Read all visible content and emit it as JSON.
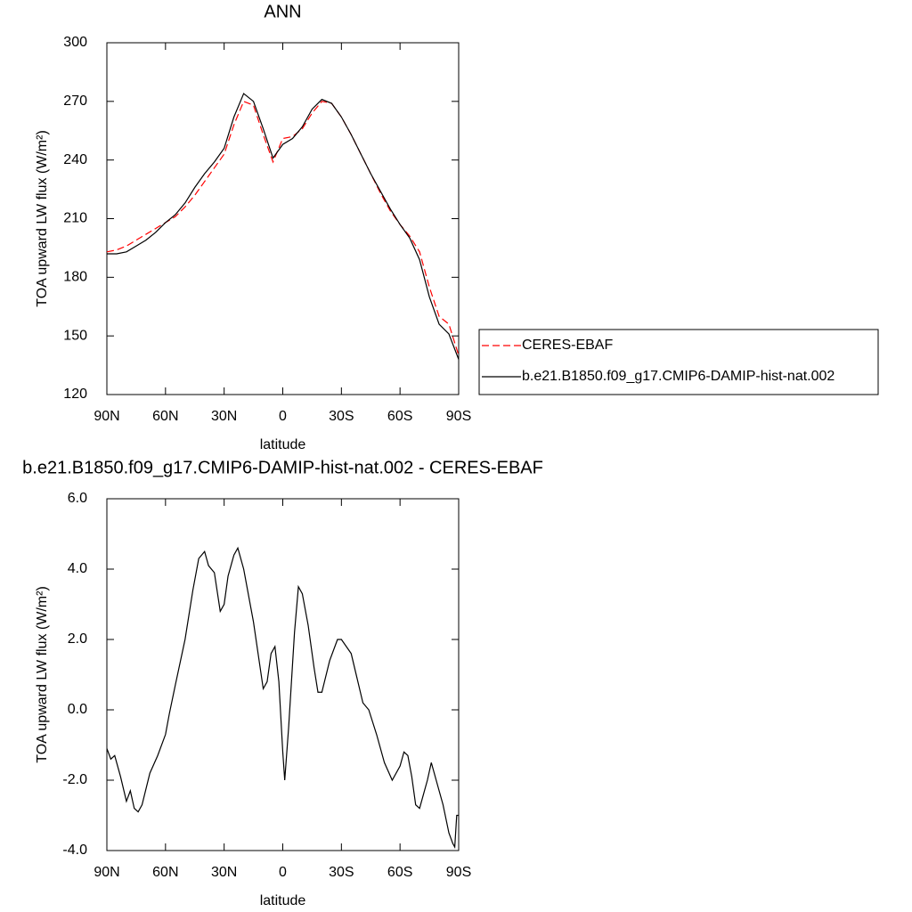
{
  "chart_data": [
    {
      "type": "line",
      "title": "ANN",
      "x_label": "latitude",
      "y_label": "TOA upward LW flux (W/m²)",
      "x": [
        90,
        85,
        80,
        75,
        70,
        65,
        60,
        55,
        50,
        45,
        40,
        35,
        30,
        25,
        20,
        15,
        10,
        5,
        0,
        -5,
        -10,
        -15,
        -20,
        -25,
        -30,
        -35,
        -40,
        -45,
        -50,
        -55,
        -60,
        -65,
        -70,
        -75,
        -80,
        -85,
        -90
      ],
      "series": [
        {
          "name": "CERES-EBAF",
          "color": "#ff0000",
          "dash": true,
          "values": [
            193,
            194,
            196,
            199,
            202,
            205,
            208,
            211,
            216,
            222,
            229,
            236,
            243,
            258,
            270,
            268,
            253,
            239,
            251,
            252,
            256,
            264,
            270,
            269,
            262,
            253,
            243,
            233,
            223,
            214,
            207,
            201,
            193,
            175,
            160,
            156,
            140
          ]
        },
        {
          "name": "b.e21.B1850.f09_g17.CMIP6-DAMIP-hist-nat.002",
          "color": "#000000",
          "dash": false,
          "values": [
            192,
            192,
            193,
            196,
            199,
            203,
            208,
            212,
            218,
            226,
            233,
            239,
            246,
            262,
            274,
            270,
            256,
            241,
            248,
            251,
            257,
            266,
            271,
            269,
            262,
            253,
            243,
            233,
            224,
            215,
            207,
            200,
            189,
            170,
            156,
            151,
            138
          ]
        }
      ],
      "xlim": [
        90,
        -90
      ],
      "xticks": [
        {
          "value": 90,
          "label": "90N"
        },
        {
          "value": 60,
          "label": "60N"
        },
        {
          "value": 30,
          "label": "30N"
        },
        0,
        {
          "value": -30,
          "label": "30S"
        },
        {
          "value": -60,
          "label": "60S"
        },
        {
          "value": -90,
          "label": "90S"
        }
      ],
      "ylim": [
        120,
        300
      ],
      "yticks": [
        120,
        150,
        180,
        210,
        240,
        270,
        300
      ],
      "legend": "right"
    },
    {
      "type": "line",
      "title": "b.e21.B1850.f09_g17.CMIP6-DAMIP-hist-nat.002 - CERES-EBAF",
      "x_label": "latitude",
      "y_label": "TOA upward LW flux (W/m²)",
      "x": [
        90,
        88,
        86,
        83,
        80,
        78,
        76,
        74,
        72,
        68,
        64,
        60,
        58,
        55,
        50,
        46,
        43,
        40,
        38,
        35,
        32,
        30,
        28,
        25,
        23,
        20,
        15,
        10,
        8,
        6,
        4,
        2,
        0,
        -1,
        -3,
        -6,
        -8,
        -10,
        -13,
        -16,
        -18,
        -20,
        -24,
        -28,
        -30,
        -35,
        -38,
        -41,
        -44,
        -48,
        -52,
        -56,
        -60,
        -62,
        -64,
        -66,
        -68,
        -70,
        -72,
        -74,
        -76,
        -80,
        -82,
        -85,
        -87,
        -88,
        -89,
        -90
      ],
      "series": [
        {
          "name": null,
          "color": "#000000",
          "dash": false,
          "values": [
            -1.1,
            -1.4,
            -1.3,
            -1.9,
            -2.6,
            -2.3,
            -2.8,
            -2.9,
            -2.7,
            -1.8,
            -1.3,
            -0.7,
            -0.1,
            0.7,
            2.0,
            3.4,
            4.3,
            4.5,
            4.1,
            3.9,
            2.8,
            3.0,
            3.8,
            4.4,
            4.6,
            4.0,
            2.5,
            0.6,
            0.8,
            1.6,
            1.8,
            0.8,
            -1.2,
            -2.0,
            -0.5,
            2.2,
            3.5,
            3.3,
            2.4,
            1.2,
            0.5,
            0.5,
            1.4,
            2.0,
            2.0,
            1.6,
            0.9,
            0.2,
            0.0,
            -0.7,
            -1.5,
            -2.0,
            -1.6,
            -1.2,
            -1.3,
            -1.9,
            -2.7,
            -2.8,
            -2.4,
            -2.0,
            -1.5,
            -2.3,
            -2.7,
            -3.5,
            -3.8,
            -3.9,
            -3.0,
            -3.0
          ]
        }
      ],
      "xlim": [
        90,
        -90
      ],
      "xticks": [
        {
          "value": 90,
          "label": "90N"
        },
        {
          "value": 60,
          "label": "60N"
        },
        {
          "value": 30,
          "label": "30N"
        },
        0,
        {
          "value": -30,
          "label": "30S"
        },
        {
          "value": -60,
          "label": "60S"
        },
        {
          "value": -90,
          "label": "90S"
        }
      ],
      "ylim": [
        -4,
        6
      ],
      "yticks": [
        {
          "value": -4,
          "label": "-4.0"
        },
        {
          "value": -2,
          "label": "-2.0"
        },
        {
          "value": 0,
          "label": "0.0"
        },
        {
          "value": 2,
          "label": "2.0"
        },
        {
          "value": 4,
          "label": "4.0"
        },
        {
          "value": 6,
          "label": "6.0"
        }
      ]
    }
  ]
}
